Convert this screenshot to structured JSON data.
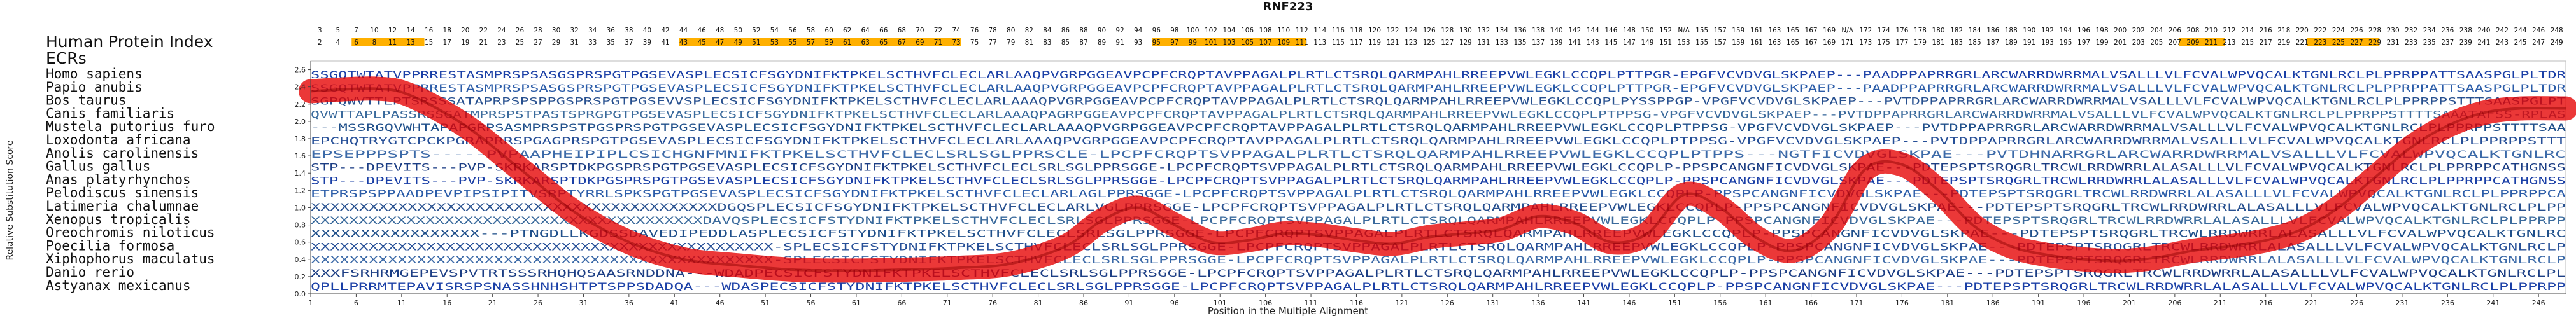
{
  "chart_data": {
    "type": "line",
    "title": "RNF223",
    "xlabel": "Position in the Multiple Alignment",
    "ylabel": "Relative Substitution Score",
    "xlim": [
      1,
      249
    ],
    "ylim": [
      0,
      2.7
    ],
    "yticks": [
      0,
      0.2,
      0.4,
      0.6,
      0.8,
      1.0,
      1.2,
      1.4,
      1.6,
      1.8,
      2.0,
      2.2,
      2.4,
      2.6
    ],
    "xticks": [
      1,
      6,
      11,
      16,
      21,
      26,
      31,
      36,
      41,
      46,
      51,
      56,
      61,
      66,
      71,
      76,
      81,
      86,
      91,
      96,
      101,
      106,
      111,
      116,
      121,
      126,
      131,
      136,
      141,
      146,
      151,
      156,
      161,
      166,
      171,
      176,
      181,
      186,
      191,
      196,
      201,
      206,
      211,
      216,
      221,
      226,
      231,
      236,
      241,
      246
    ],
    "header_rows": {
      "human_protein_index_label": "Human Protein Index",
      "ecrs_label": "ECRs",
      "human_index": [
        "3",
        "5",
        "7",
        "10",
        "12",
        "14",
        "16",
        "18",
        "20",
        "22",
        "24",
        "26",
        "28",
        "30",
        "32",
        "34",
        "36",
        "38",
        "40",
        "42",
        "44",
        "46",
        "48",
        "50",
        "52",
        "54",
        "56",
        "58",
        "60",
        "62",
        "64",
        "66",
        "68",
        "70",
        "72",
        "74",
        "76",
        "78",
        "80",
        "82",
        "84",
        "86",
        "88",
        "90",
        "92",
        "94",
        "96",
        "98",
        "100",
        "102",
        "104",
        "106",
        "108",
        "110",
        "112",
        "114",
        "116",
        "118",
        "120",
        "122",
        "124",
        "126",
        "128",
        "130",
        "132",
        "134",
        "136",
        "138",
        "140",
        "142",
        "144",
        "146",
        "148",
        "150",
        "152",
        "N/A",
        "155",
        "157",
        "159",
        "161",
        "163",
        "165",
        "167",
        "169",
        "N/A",
        "172",
        "174",
        "176",
        "178",
        "180",
        "182",
        "184",
        "186",
        "188",
        "190",
        "192",
        "194",
        "196",
        "198",
        "200",
        "202",
        "204",
        "206",
        "208",
        "210",
        "212",
        "214",
        "216",
        "218",
        "220",
        "222",
        "224",
        "226",
        "228",
        "230",
        "232",
        "234",
        "236",
        "238",
        "240",
        "242",
        "244",
        "246",
        "248"
      ],
      "alignment_index": [
        "2",
        "4",
        "6",
        "8",
        "11",
        "13",
        "15",
        "17",
        "19",
        "21",
        "23",
        "25",
        "27",
        "29",
        "31",
        "33",
        "35",
        "37",
        "39",
        "41",
        "43",
        "45",
        "47",
        "49",
        "51",
        "53",
        "55",
        "57",
        "59",
        "61",
        "63",
        "65",
        "67",
        "69",
        "71",
        "73",
        "75",
        "77",
        "79",
        "81",
        "83",
        "85",
        "87",
        "89",
        "91",
        "93",
        "95",
        "97",
        "99",
        "101",
        "103",
        "105",
        "107",
        "109",
        "111",
        "113",
        "115",
        "117",
        "119",
        "121",
        "123",
        "125",
        "127",
        "129",
        "131",
        "133",
        "135",
        "137",
        "139",
        "141",
        "143",
        "145",
        "147",
        "149",
        "151",
        "153",
        "155",
        "157",
        "159",
        "161",
        "163",
        "165",
        "167",
        "169",
        "171",
        "173",
        "175",
        "177",
        "179",
        "181",
        "183",
        "185",
        "187",
        "189",
        "191",
        "193",
        "195",
        "197",
        "199",
        "201",
        "203",
        "205",
        "207",
        "209",
        "211",
        "213",
        "215",
        "217",
        "219",
        "221",
        "223",
        "225",
        "227",
        "229",
        "231",
        "233",
        "235",
        "237",
        "239",
        "241",
        "243",
        "245",
        "247",
        "249"
      ],
      "ecr_ranges": [
        [
          6,
          13
        ],
        [
          42,
          72
        ],
        [
          94,
          110
        ],
        [
          207,
          211
        ],
        [
          221,
          228
        ]
      ]
    },
    "species": [
      "Homo sapiens",
      "Papio anubis",
      "Bos taurus",
      "Canis familiaris",
      "Mustela putorius furo",
      "Loxodonta africana",
      "Anolis carolinensis",
      "Gallus gallus",
      "Anas platyrhynchos",
      "Pelodiscus sinensis",
      "Latimeria chalumnae",
      "Xenopus tropicalis",
      "Oreochromis niloticus",
      "Poecilia formosa",
      "Xiphophorus maculatus",
      "Danio rerio",
      "Astyanax mexicanus"
    ],
    "sequences": [
      "SSGQTWTATVPPRRESTASMPRSPSASGSPRSPGTPGSEVASPLECSICFSGYDNIFKTPKELSCTHVFCLECLARLAAQPVGRPGGEAVPCPFCRQPTAVPPAGALPLRTLCTSRQLQARMPAHLRREEPVWLEGKLCCQPLPTTPGR-EPGFVCVDVGLSKPAEP---PAADPPAPRRGRLARCWARRDWRRMALVSALLLVLFCVALWPVQCALKTGNLRCLPLPPRPPATTSAASPGLPLTDR",
      "SSGQTWTATVPPRRESTASMPRSPSASGSPRSPGTPGSEVASPLECSICFSGYDNIFKTPKELSCTHVFCLECLARLAAQPVGRPGGEAVPCPFCRQPTAVPPAGALPLRTLCTSRQLQARMPAHLRREEPVWLEGKLCCQPLPTTPGR-EPGFVCVDVGLSKPAEP---PAADPPAPRRGRLARCWARRDWRRMALVSALLLVLFCVALWPVQCALKTGNLRCLPLPPRPPATTSAASPGLPLTDR",
      "SGPQWVTTLPTSRSSSATAPRPSPSPPGSPRSPGTPGSEVVSPLECSICFSGYDNIFKTPKELSCTHVFCLECLARLAAAQPVGRPGGEAVPCPFCRQPTAVPPAGALPLRTLCTSRQLQARMPAHLRREEPVWLEGKLCCQPLPYSSPPGP-VPGFVCVDVGLSKPAEP---PVTDPPAPRRGRLARCWARRDWRRMALVSALLLVLFCVALWPVQCALKTGNLRCLPLPPRPPSTTTSAASPGLPT",
      "QVWTTAPLPASSRSSGATMPRSPSTPASTSPRGPGTPGSEVASPLECSICFSGYDNIFKTPKELSCTHVFCLECLARLAAAQPAGRPGGEAVPCPFCRQPTAVPPAGALPLRTLCTSRQLQARMPAHLRREEPVWLEGKLCCQPLPTPPSG-VPGFVCVDVGLSKPAEP---PVTDPPAPRRGRLARCWARRDWRRMALVSALLLVLFCVALWPVQCALKTGNLRCLPLPPRPPSTTTTSAAATAFSS-RPLAS",
      "---MSSRGQVWHTAPAPGRPSASMPRSPSTPGSPRSPGTPGSEVASPLECSICFSGYDNIFKTPKELSCTHVFCLECLARLAAAQPVGRPGGEAVPCPFCRQPTAVPPAGALPLRTLCTSRQLQARMPAHLRREEPVWLEGKLCCQPLPTPPSG-VPGFVCVDVGLSKPAEP---PVTDPPAPRRGRLARCWARRDWRRMALVSALLLVLFCVALWPVQCALKTGNLRCLPLPPRPPSTTTTSAA",
      "EPCHQTRYGTCPCKPGRAPRRSPGAGPRSPGTPGSEVASPLECSICFSGYDNIFKTPKELSCTHVFCLECLARLAAAQPVGRPGGEAVPCPFCRQPTAVPPAGALPLRTLCTSRQLQARMPAHLRREEPVWLEGKLCCQPLPTPPSG-VPGFVCVDVGLSKPAEP---PVTDPPAPRRGRLARCWARRDWRRMALVSALLLVLFCVALWPVQCALKTGNLRCLPLPPRPPSTTT",
      "EPSEPPPSPTS-----PVPAAPHEIPIPLCSICHGNFMNIFKTPKELSCTHVFCLECLSRLSGLPPRSCLE-LPCPFCRQPTSVPPAGALPLRTLCTSRQLQARMPAHLRREEPVWLEGKLCCQPLPTPPS---NGTFICVDVGLSKPAE---PVTDHNARRGRLARCWARRDWRRMALVSALLLVLFCVALWPVQCALKTGNLRC",
      "STP---DPEVITS---PVP-SKRKARSPTDKPGSPRSPGTPGSEVASPLECSICFSGYDNIFKTPKELSCTHVFCLECLSRLSGLPPRSGGE-LPCPFCRQPTSVPPAGALPLRTLCTSRQLQARMPAHLRREEPVWLEGKLCCQPLP-PPSPCANGNFICVDVGLSKPAE---PDTEPSPTSRQGRLTRCWLRRDWRRLALASALLLVLFCVALWPVQCALKTGNLRCLPLPPRPPCATHGNSS",
      "STP---DPEVITS---PVP-SKRKARSPTDKPGSPRSPGTPGSEVASPLECSICFSGYDNIFKTPKELSCTHVFCLECLSRLSGLPPRSGGE-LPCPFCRQPTSVPPAGALPLRTLCTSRQLQARMPAHLRREEPVWLEGKLCCQPLP-PPSPCANGNFICVDVGLSKPAE---PDTEPSPTSRQGRLTRCWLRRDWRRLALASALLLVLFCVALWPVQCALKTGNLRCLPLPPRPPCATHGNSS",
      "ETPRSPSPPAADPEVPIPSIPITVSRPTYRRLSPKSPGTPGSEVASPLECSICFSGYDNIFKTPKELSCTHVFCLECLARLAGLPPRSGGE-LPCPFCRQPTSVPPAGALPLRTLCTSRQLQARMPAHLRREEPVWLEGKLCCQPLP-PPSPCANGNFICVDVGLSKPAE---PDTEPSPTSRQGRLTRCWLRRDWRRLALASALLLVLFCVALWPVQCALKTGNLRCLPLPPRPPCA",
      "XXXXXXXXXXXXXXXXXXXXXXXXXXXXXXXXXXXXXXXXXXDGQSPLECSICFSGYDNIFKTPKELSCTHVFCLECLARLVGLPPRSGGE-LPCPFCRQPTSVPPAGALPLRTLCTSRQLQARMPAHLRREEPVWLEGKLCCQPLP-PPSPCANGNFICVDVGLSKPAE---PDTEPSPTSRQGRLTRCWLRRDWRRLALASALLLVLFCVALWPVQCALKTGNLRCLPLPP",
      "XXXXXXXXXXXXXXXXXXXXXXXXXXXXXXXXXXXXXXXXXDAVQSPLECSICFSTYDNIFKTPKELSCTHVFCLECLSRLSGLPPRSGGE-LPCPFCRQPTSVPPAGALPLRTLCTSRQLQARMPAHLRREEPVWLEGKLCCQPLP-PPSPCANGNFICVDVGLSKPAE---PDTEPSPTSRQGRLTRCWLRRDWRRLALASALLLVLFCVALWPVQCALKTGNLRCLPLPPRPP",
      "XXXXXXXXXXXXXXXXX---PTNGDLLKGDSSDAVEDIPEDDLASPLECSICFSTYDNIFKTPKELSCTHVFCLECLSRLSGLPPRSGGE-LPCPFCRQPTSVPPAGALPLRTLCTSRQLQARMPAHLRREEPVWLEGKLCCQPLP-PPSPCANGNFICVDVGLSKPAE---PDTEPSPTSRQGRLTRCWLRRDWRRLALASALLLVLFCVALWPVQCALKTGNLRC",
      "XXXXXXXXXXXXXXXXXXXXXXXXXXXXXXXXXXXXXXXXXXXXXXXX-SPLECSICFSTYDNIFKTPKELSCTHVFCLECLSRLSGLPPRSGGE-LPCPFCRQPTSVPPAGALPLRTLCTSRQLQARMPAHLRREEPVWLEGKLCCQPLP-PPSPCANGNFICVDVGLSKPAE---PDTEPSPTSRQGRLTRCWLRRDWRRLALASALLLVLFCVALWPVQCALKTGNLRCLP",
      "XXXXXXXXXXXXXXXXXXXXXXXXXXXXXXXXXXXXXXXXXXXXXXXX-SPLECSICFSTYDNIFKTPKELSCTHVFCLECLSRLSGLPPRSGGE-LPCPFCRQPTSVPPAGALPLRTLCTSRQLQARMPAHLRREEPVWLEGKLCCQPLP-PPSPCANGNFICVDVGLSKPAE---PDTEPSPTSRQGRLTRCWLRRDWRRLALASALLLVLFCVALWPVQCALKTGNLRCLP",
      "XXXFSRHRMGEPEVSPVTRTSSSRHQHQSAASRNDDNA---WDADPECSICFSTYDNIFKTPKELSCTHVFCLECLSRLSGLPPRSGGE-LPCPFCRQPTSVPPAGALPLRTLCTSRQLQARMPAHLRREEPVWLEGKLCCQPLP-PPSPCANGNFICVDVGLSKPAE---PDTEPSPTSRQGRLTRCWLRRDWRRLALASALLLVLFCVALWPVQCALKTGNLRCLPL",
      "QPLLPRRMTEPAVISRSPSNASSHNHSHTPTSPPSDADQA---WDASPECSICFSTYDNIFKTPKELSCTHVFCLECLSRLSGLPPRSGGE-LPCPFCRQPTSVPPAGALPLRTLCTSRQLQARMPAHLRREEPVWLEGKLCCQPLP-PPSPCANGNFICVDVGLSKPAE---PDTEPSPTSRQGRLTRCWLRRDWRRLALASALLLVLFCVALWPVQCALKTGNLRCLPLPPRPP"
    ],
    "series": [
      {
        "color": "#e60000",
        "x": [
          1,
          8,
          12,
          18,
          24,
          30,
          36,
          42,
          48,
          54,
          60,
          66,
          72,
          78,
          84,
          88,
          92,
          96,
          100,
          104,
          108,
          112,
          116,
          120,
          124,
          128,
          132,
          136,
          140,
          144,
          148,
          152,
          156,
          160,
          164,
          168,
          172,
          176,
          180,
          184,
          188,
          192,
          196,
          200,
          204,
          208,
          212,
          216,
          220,
          224,
          228,
          232,
          236,
          240,
          244,
          249
        ],
        "y": [
          2.35,
          2.38,
          2.3,
          1.95,
          1.45,
          0.95,
          0.6,
          0.4,
          0.33,
          0.28,
          0.27,
          0.28,
          0.3,
          0.35,
          0.55,
          0.85,
          1.0,
          0.8,
          0.6,
          0.62,
          0.7,
          0.68,
          0.62,
          0.58,
          0.66,
          0.7,
          0.75,
          0.9,
          0.82,
          0.6,
          0.7,
          1.15,
          1.0,
          0.65,
          0.5,
          0.78,
          1.45,
          1.5,
          1.2,
          0.78,
          0.55,
          0.45,
          0.4,
          0.38,
          0.42,
          0.5,
          0.55,
          0.62,
          0.75,
          1.0,
          1.35,
          1.7,
          1.95,
          2.1,
          2.15,
          2.15
        ]
      }
    ]
  }
}
